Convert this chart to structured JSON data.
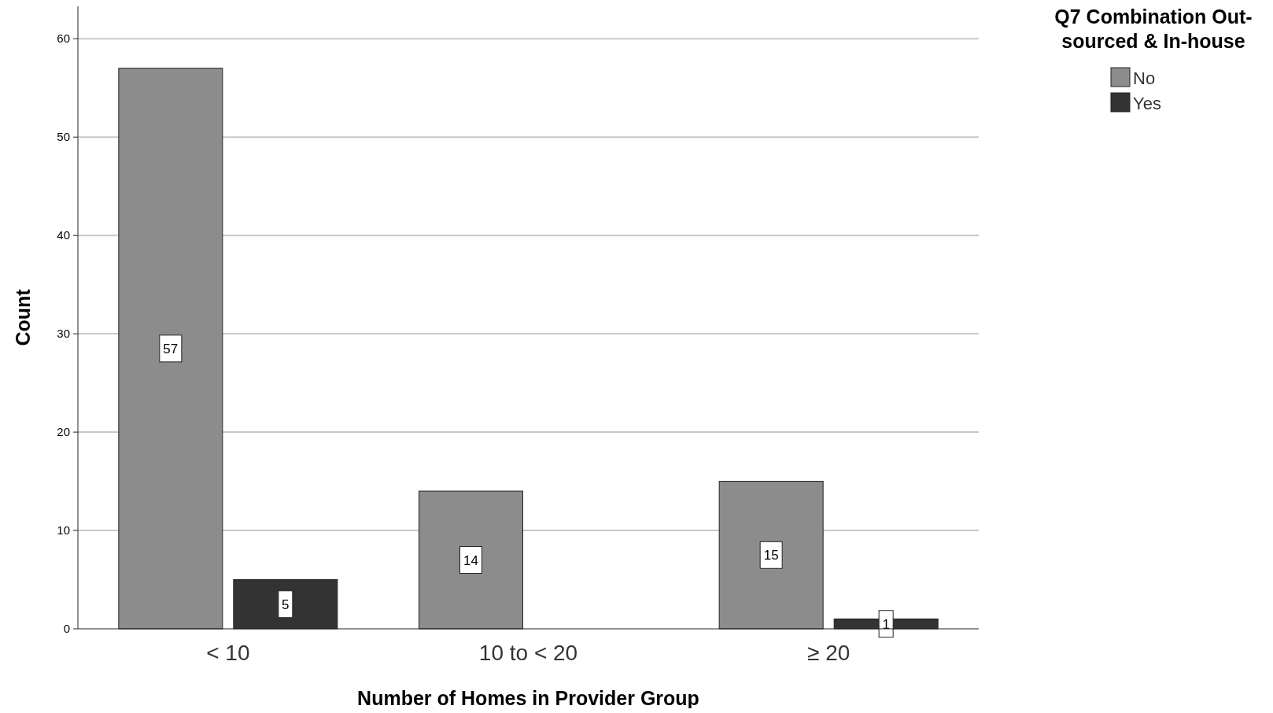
{
  "chart_data": {
    "type": "bar",
    "xlabel": "Number of Homes in Provider Group",
    "ylabel": "Count",
    "legend_title": "Q7 Combination Out-sourced & In-house",
    "categories": [
      "< 10",
      "10 to < 20",
      "≥ 20"
    ],
    "series": [
      {
        "name": "No",
        "color": "#8c8c8c",
        "values": [
          57,
          14,
          15
        ]
      },
      {
        "name": "Yes",
        "color": "#333333",
        "values": [
          5,
          null,
          1
        ]
      }
    ],
    "ylim": [
      0,
      63.3
    ],
    "yticks": [
      0,
      10,
      20,
      30,
      40,
      50,
      60
    ],
    "grid": "y",
    "legend": "top right",
    "data_labels": true
  }
}
